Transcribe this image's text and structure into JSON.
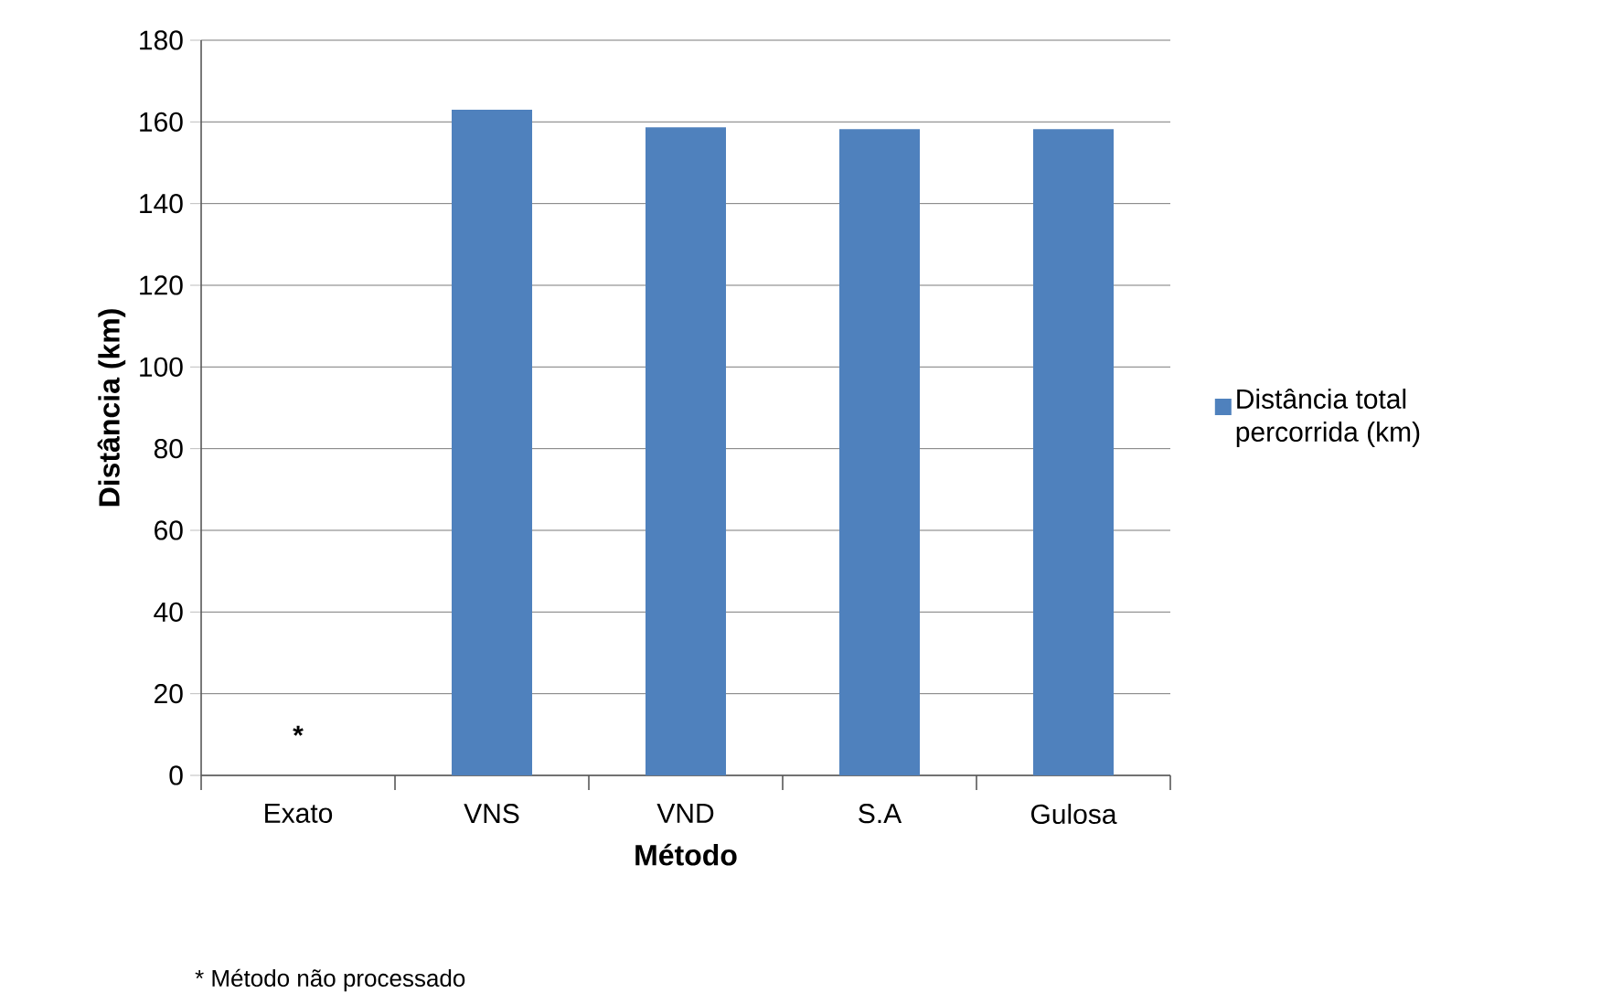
{
  "chart_data": {
    "type": "bar",
    "xlabel": "Método",
    "ylabel": "Distância (km)",
    "categories": [
      "Exato",
      "VNS",
      "VND",
      "S.A",
      "Gulosa"
    ],
    "series": [
      {
        "name": "Distância total percorrida (km)",
        "color": "#4f81bd",
        "values": [
          null,
          163,
          158.7,
          158.2,
          158.2
        ]
      }
    ],
    "ylim": [
      0,
      180
    ],
    "yticks": [
      0,
      20,
      40,
      60,
      80,
      100,
      120,
      140,
      160,
      180
    ],
    "grid": "y",
    "legend": "right",
    "annotations": [
      "*",
      "* Método não processado"
    ]
  }
}
